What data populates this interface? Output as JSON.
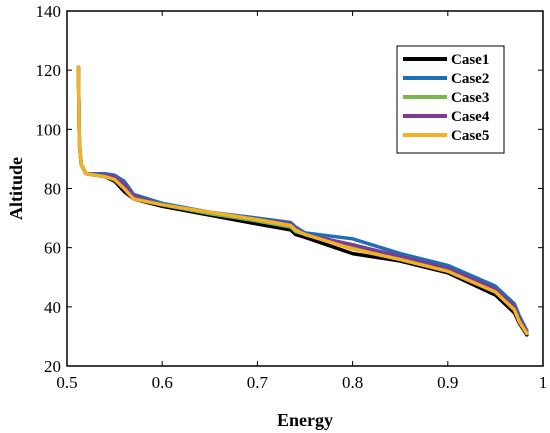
{
  "chart_data": {
    "type": "line",
    "xlabel": "Energy",
    "ylabel": "Altitude",
    "xlim": [
      0.5,
      1.0
    ],
    "ylim": [
      20,
      140
    ],
    "xticks": [
      0.5,
      0.6,
      0.7,
      0.8,
      0.9,
      1.0
    ],
    "xtick_labels": [
      "0.5",
      "0.6",
      "0.7",
      "0.8",
      "0.9",
      "1"
    ],
    "yticks": [
      20,
      40,
      60,
      80,
      100,
      120,
      140
    ],
    "ytick_labels": [
      "20",
      "40",
      "60",
      "80",
      "100",
      "120",
      "140"
    ],
    "grid": false,
    "legend_position": "top-right",
    "series": [
      {
        "name": "Case1",
        "color": "#000000",
        "x": [
          0.512,
          0.513,
          0.515,
          0.52,
          0.53,
          0.54,
          0.55,
          0.56,
          0.57,
          0.6,
          0.65,
          0.7,
          0.735,
          0.74,
          0.75,
          0.8,
          0.85,
          0.9,
          0.95,
          0.97,
          0.975,
          0.983
        ],
        "y": [
          121,
          95,
          88,
          85,
          84.5,
          84,
          82.5,
          79,
          76.5,
          74,
          71,
          68,
          66,
          64.5,
          63.5,
          58,
          55.5,
          51.5,
          44,
          38,
          34.5,
          30.5
        ]
      },
      {
        "name": "Case2",
        "color": "#1f6fb4",
        "x": [
          0.512,
          0.513,
          0.515,
          0.52,
          0.53,
          0.54,
          0.55,
          0.56,
          0.57,
          0.6,
          0.65,
          0.7,
          0.735,
          0.74,
          0.75,
          0.8,
          0.85,
          0.9,
          0.95,
          0.97,
          0.975,
          0.983
        ],
        "y": [
          121,
          95,
          88,
          85,
          85,
          85,
          84.5,
          82.5,
          78,
          75,
          72,
          70,
          68.5,
          67,
          65,
          63,
          58,
          54,
          47,
          41,
          37,
          32
        ]
      },
      {
        "name": "Case3",
        "color": "#7ab648",
        "x": [
          0.512,
          0.513,
          0.515,
          0.52,
          0.53,
          0.54,
          0.55,
          0.56,
          0.57,
          0.6,
          0.65,
          0.7,
          0.735,
          0.74,
          0.75,
          0.8,
          0.85,
          0.9,
          0.95,
          0.97,
          0.975,
          0.983
        ],
        "y": [
          121,
          95,
          88,
          85,
          84.5,
          84.5,
          83.5,
          80.5,
          77,
          74.5,
          71.5,
          69,
          67,
          65.5,
          64.5,
          60,
          56.5,
          52.5,
          45.5,
          39.5,
          35.5,
          31.5
        ]
      },
      {
        "name": "Case4",
        "color": "#7e3b96",
        "x": [
          0.512,
          0.513,
          0.515,
          0.52,
          0.53,
          0.54,
          0.55,
          0.56,
          0.57,
          0.6,
          0.65,
          0.7,
          0.735,
          0.74,
          0.75,
          0.8,
          0.85,
          0.9,
          0.95,
          0.97,
          0.975,
          0.983
        ],
        "y": [
          121,
          95,
          88,
          85,
          84.5,
          84.5,
          84,
          81.5,
          77.5,
          74.5,
          72,
          69.5,
          68,
          66.5,
          64.5,
          61,
          57,
          53,
          46,
          40,
          36,
          31.5
        ]
      },
      {
        "name": "Case5",
        "color": "#f0b323",
        "x": [
          0.512,
          0.513,
          0.515,
          0.52,
          0.53,
          0.54,
          0.55,
          0.56,
          0.57,
          0.6,
          0.65,
          0.7,
          0.735,
          0.74,
          0.75,
          0.8,
          0.85,
          0.9,
          0.95,
          0.97,
          0.975,
          0.983
        ],
        "y": [
          121,
          95,
          88,
          85,
          84.5,
          84,
          83,
          80,
          76.5,
          74.5,
          72,
          69.5,
          67.5,
          66,
          64.5,
          59.5,
          56,
          52,
          45,
          39,
          35,
          31
        ]
      }
    ]
  }
}
